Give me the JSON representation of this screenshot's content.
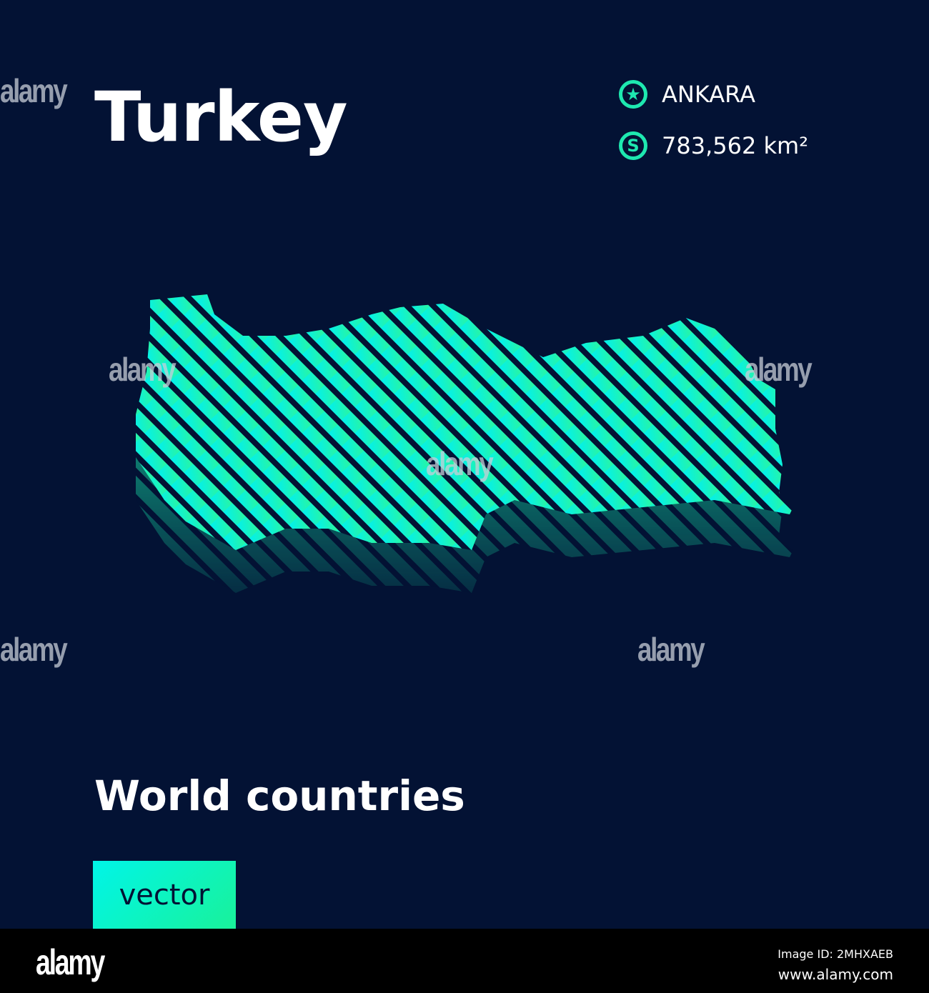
{
  "title": "Turkey",
  "capital": {
    "icon": "star-circle-icon",
    "label": "ANKARA"
  },
  "area": {
    "icon": "s-circle-icon",
    "label": "783,562 km²"
  },
  "subtitle": "World countries",
  "badge": "vector",
  "colors": {
    "background": "#031234",
    "accent_cyan": "#00f5e8",
    "accent_green": "#19f29a"
  },
  "watermark": "alamy",
  "footer": {
    "logo": "alamy",
    "image_id": "Image ID: 2MHXAEB",
    "url": "www.alamy.com"
  }
}
